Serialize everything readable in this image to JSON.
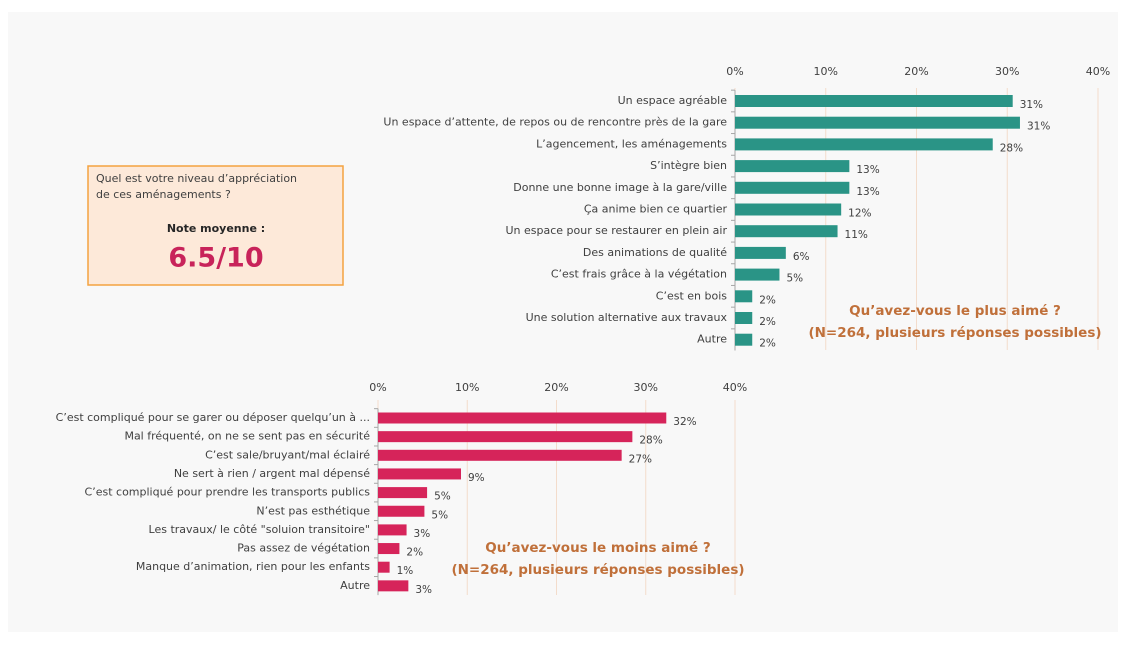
{
  "box": {
    "question": [
      "Quel est votre niveau d’appréciation",
      "de ces aménagements ?"
    ],
    "label": "Note moyenne :",
    "score": "6.5/10"
  },
  "chart_data": [
    {
      "type": "bar",
      "orientation": "horizontal",
      "title": "Qu’avez-vous le plus aimé ?",
      "subtitle": "(N=264, plusieurs réponses possibles)",
      "color": "#2a9486",
      "categories": [
        "Un espace agréable",
        "Un espace d’attente, de repos ou de rencontre près de la gare",
        "L’agencement, les aménagements",
        "S’intègre bien",
        "Donne une bonne image à la gare/ville",
        "Ça anime bien ce quartier",
        "Un espace pour se restaurer en plein air",
        "Des animations de qualité",
        "C’est frais grâce à la végétation",
        "C’est en bois",
        "Une solution alternative aux travaux",
        "Autre"
      ],
      "values": [
        30.6,
        31.4,
        28.4,
        12.6,
        12.6,
        11.7,
        11.3,
        5.6,
        4.9,
        1.9,
        1.9,
        1.9
      ],
      "value_labels": [
        "31%",
        "31%",
        "28%",
        "13%",
        "13%",
        "12%",
        "11%",
        "6%",
        "5%",
        "2%",
        "2%",
        "2%"
      ],
      "xlim": [
        0,
        40
      ],
      "xticks": [
        {
          "value": 0,
          "label": "0%"
        },
        {
          "value": 10,
          "label": "10%"
        },
        {
          "value": 20,
          "label": "20%"
        },
        {
          "value": 30,
          "label": "30%"
        },
        {
          "value": 40,
          "label": "40%"
        }
      ],
      "grid": true
    },
    {
      "type": "bar",
      "orientation": "horizontal",
      "title": "Qu’avez-vous le moins aimé ?",
      "subtitle": "(N=264, plusieurs réponses possibles)",
      "color": "#d6245a",
      "categories": [
        "C’est compliqué pour se garer ou déposer quelqu’un à ...",
        "Mal fréquenté, on ne se sent pas en sécurité",
        "C’est sale/bruyant/mal éclairé",
        "Ne sert à rien / argent mal dépensé",
        "C’est compliqué pour prendre les transports publics",
        "N’est pas esthétique",
        "Les travaux/ le côté \"soluion transitoire\"",
        "Pas assez de végétation",
        "Manque d’animation, rien pour les enfants",
        "Autre"
      ],
      "values": [
        32.3,
        28.5,
        27.3,
        9.3,
        5.5,
        5.2,
        3.2,
        2.4,
        1.3,
        3.4
      ],
      "value_labels": [
        "32%",
        "28%",
        "27%",
        "9%",
        "5%",
        "5%",
        "3%",
        "2%",
        "1%",
        "3%"
      ],
      "xlim": [
        0,
        40
      ],
      "xticks": [
        {
          "value": 0,
          "label": "0%"
        },
        {
          "value": 10,
          "label": "10%"
        },
        {
          "value": 20,
          "label": "20%"
        },
        {
          "value": 30,
          "label": "30%"
        },
        {
          "value": 40,
          "label": "40%"
        }
      ],
      "grid": true
    }
  ]
}
